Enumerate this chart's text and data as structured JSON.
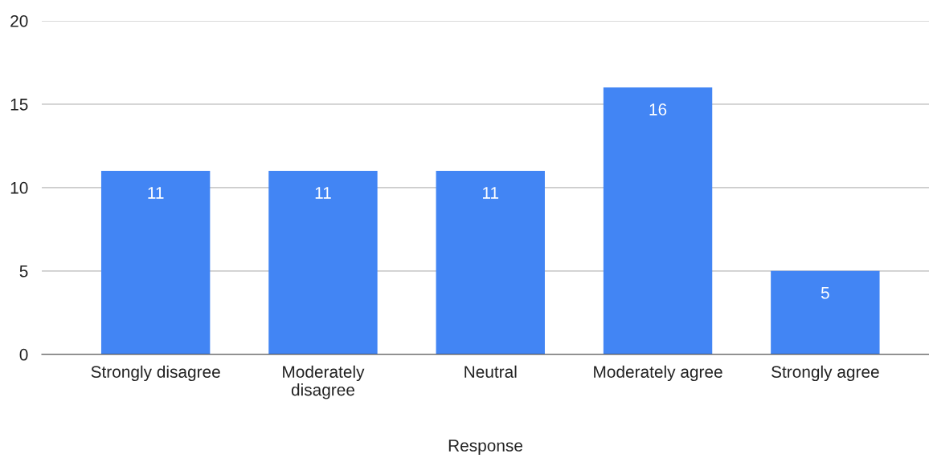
{
  "chart_data": {
    "type": "bar",
    "xlabel": "Response",
    "categories": [
      "Strongly disagree",
      "Moderately\ndisagree",
      "Neutral",
      "Moderately agree",
      "Strongly agree"
    ],
    "values": [
      11,
      11,
      11,
      16,
      5
    ],
    "color": "#4285f4",
    "ylim": [
      0,
      20
    ],
    "yticks": [
      0,
      5,
      10,
      15,
      20
    ],
    "grid": "y",
    "data_labels": true
  }
}
